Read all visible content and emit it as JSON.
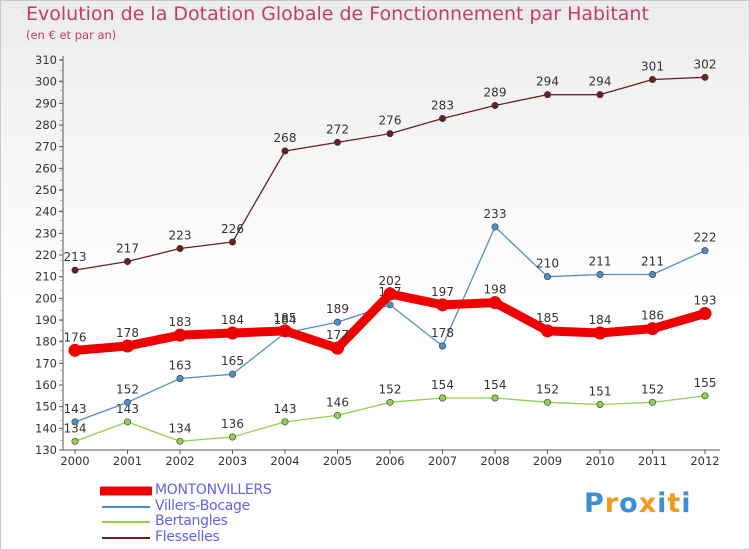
{
  "title": "Evolution de la Dotation Globale de Fonctionnement par Habitant",
  "subtitle": "(en € et par an)",
  "logo": {
    "text": "Proxiti",
    "colors": [
      "#3a8fd8",
      "#f29a1f",
      "#3a8fd8",
      "#f29a1f",
      "#3a8fd8",
      "#f29a1f",
      "#3a8fd8"
    ]
  },
  "chart_data": {
    "type": "line",
    "title": "Evolution de la Dotation Globale de Fonctionnement par Habitant",
    "subtitle": "(en € et par an)",
    "x": [
      "2000",
      "2001",
      "2002",
      "2003",
      "2004",
      "2005",
      "2006",
      "2007",
      "2008",
      "2009",
      "2010",
      "2011",
      "2012"
    ],
    "ylim": [
      130,
      310
    ],
    "yticks": [
      130,
      140,
      150,
      160,
      170,
      180,
      190,
      200,
      210,
      220,
      230,
      240,
      250,
      260,
      270,
      280,
      290,
      300,
      310
    ],
    "grid": false,
    "legend_position": "bottom-left",
    "series": [
      {
        "name": "MONTONVILLERS",
        "color": "#ee0000",
        "values": [
          176,
          178,
          183,
          184,
          185,
          177,
          202,
          197,
          198,
          185,
          184,
          186,
          193
        ]
      },
      {
        "name": "Villers-Bocage",
        "color": "#4f8fc8",
        "values": [
          143,
          152,
          163,
          165,
          184,
          189,
          197,
          178,
          233,
          210,
          211,
          211,
          222
        ]
      },
      {
        "name": "Bertangles",
        "color": "#8fd14f",
        "values": [
          134,
          143,
          134,
          136,
          143,
          146,
          152,
          154,
          154,
          152,
          151,
          152,
          155
        ]
      },
      {
        "name": "Flesselles",
        "color": "#6b2020",
        "values": [
          213,
          217,
          223,
          226,
          268,
          272,
          276,
          283,
          289,
          294,
          294,
          301,
          302
        ]
      }
    ]
  }
}
